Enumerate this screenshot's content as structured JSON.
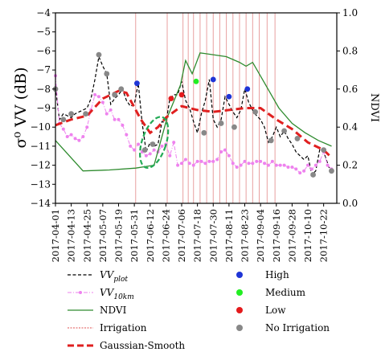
{
  "chart_data": {
    "type": "line",
    "title": "",
    "ylabel": "σ⁰ VV (dB)",
    "y2label": "NDVI",
    "ylim": [
      -14,
      -4
    ],
    "y2lim": [
      0.0,
      1.0
    ],
    "yticks": [
      -4,
      -5,
      -6,
      -7,
      -8,
      -9,
      -10,
      -11,
      -12,
      -13,
      -14
    ],
    "y2ticks": [
      "1.0",
      "0.8",
      "0.6",
      "0.4",
      "0.2",
      "0.0"
    ],
    "xlim": [
      "2017-04-01",
      "2017-11-01"
    ],
    "xticks": [
      "2017-04-01",
      "2017-04-13",
      "2017-04-25",
      "2017-05-07",
      "2017-05-19",
      "2017-05-31",
      "2017-06-12",
      "2017-06-24",
      "2017-07-06",
      "2017-07-18",
      "2017-07-30",
      "2017-08-11",
      "2017-08-23",
      "2017-09-04",
      "2017-09-16",
      "2017-09-28",
      "2017-10-10",
      "2017-10-22"
    ],
    "irrigation_dates": [
      "2017-06-01",
      "2017-06-25",
      "2017-07-07",
      "2017-07-11",
      "2017-07-15",
      "2017-07-20",
      "2017-07-25",
      "2017-07-30",
      "2017-08-04",
      "2017-08-09",
      "2017-08-14",
      "2017-08-19",
      "2017-08-24",
      "2017-08-29",
      "2017-09-03",
      "2017-09-09",
      "2017-09-15"
    ],
    "series": [
      {
        "name": "VV_plot",
        "axis": "left",
        "style": "dashed",
        "color": "#000000",
        "points": [
          [
            "2017-04-01",
            -7.9
          ],
          [
            "2017-04-04",
            -9.6
          ],
          [
            "2017-04-07",
            -9.3
          ],
          [
            "2017-04-10",
            -9.4
          ],
          [
            "2017-04-13",
            -9.5
          ],
          [
            "2017-04-16",
            -9.3
          ],
          [
            "2017-04-19",
            -9.2
          ],
          [
            "2017-04-22",
            -9.1
          ],
          [
            "2017-04-25",
            -9.0
          ],
          [
            "2017-04-28",
            -8.5
          ],
          [
            "2017-05-01",
            -7.5
          ],
          [
            "2017-05-04",
            -6.3
          ],
          [
            "2017-05-07",
            -6.8
          ],
          [
            "2017-05-10",
            -7.2
          ],
          [
            "2017-05-13",
            -8.8
          ],
          [
            "2017-05-16",
            -8.5
          ],
          [
            "2017-05-19",
            -8.3
          ],
          [
            "2017-05-22",
            -8.0
          ],
          [
            "2017-05-25",
            -8.6
          ],
          [
            "2017-05-28",
            -8.9
          ],
          [
            "2017-05-31",
            -8.8
          ],
          [
            "2017-06-03",
            -7.7
          ],
          [
            "2017-06-06",
            -9.8
          ],
          [
            "2017-06-09",
            -11.3
          ],
          [
            "2017-06-12",
            -10.8
          ],
          [
            "2017-06-15",
            -11.0
          ],
          [
            "2017-06-18",
            -10.9
          ],
          [
            "2017-06-21",
            -9.7
          ],
          [
            "2017-06-24",
            -9.8
          ],
          [
            "2017-06-27",
            -8.5
          ],
          [
            "2017-06-30",
            -8.3
          ],
          [
            "2017-07-03",
            -8.3
          ],
          [
            "2017-07-06",
            -7.6
          ],
          [
            "2017-07-09",
            -8.6
          ],
          [
            "2017-07-12",
            -9.0
          ],
          [
            "2017-07-15",
            -9.7
          ],
          [
            "2017-07-18",
            -10.3
          ],
          [
            "2017-07-21",
            -9.3
          ],
          [
            "2017-07-24",
            -8.6
          ],
          [
            "2017-07-27",
            -7.5
          ],
          [
            "2017-07-30",
            -9.6
          ],
          [
            "2017-08-02",
            -10.0
          ],
          [
            "2017-08-05",
            -9.6
          ],
          [
            "2017-08-08",
            -8.4
          ],
          [
            "2017-08-11",
            -8.8
          ],
          [
            "2017-08-14",
            -9.2
          ],
          [
            "2017-08-17",
            -9.5
          ],
          [
            "2017-08-20",
            -9.1
          ],
          [
            "2017-08-23",
            -8.0
          ],
          [
            "2017-08-26",
            -8.7
          ],
          [
            "2017-08-29",
            -9.1
          ],
          [
            "2017-09-01",
            -9.4
          ],
          [
            "2017-09-04",
            -9.6
          ],
          [
            "2017-09-07",
            -10.0
          ],
          [
            "2017-09-10",
            -10.8
          ],
          [
            "2017-09-13",
            -10.5
          ],
          [
            "2017-09-16",
            -10.0
          ],
          [
            "2017-09-19",
            -10.5
          ],
          [
            "2017-09-22",
            -10.2
          ],
          [
            "2017-09-25",
            -10.6
          ],
          [
            "2017-09-28",
            -10.9
          ],
          [
            "2017-10-01",
            -11.3
          ],
          [
            "2017-10-04",
            -11.5
          ],
          [
            "2017-10-07",
            -11.7
          ],
          [
            "2017-10-10",
            -11.5
          ],
          [
            "2017-10-13",
            -12.5
          ],
          [
            "2017-10-16",
            -12.3
          ],
          [
            "2017-10-19",
            -11.2
          ],
          [
            "2017-10-22",
            -11.3
          ],
          [
            "2017-10-25",
            -11.9
          ],
          [
            "2017-10-28",
            -12.5
          ]
        ]
      },
      {
        "name": "VV_10km",
        "axis": "left",
        "style": "dash-dot-markers",
        "color": "#ee82ee",
        "points": [
          [
            "2017-04-01",
            -7.3
          ],
          [
            "2017-04-04",
            -9.8
          ],
          [
            "2017-04-07",
            -10.1
          ],
          [
            "2017-04-10",
            -10.5
          ],
          [
            "2017-04-13",
            -10.4
          ],
          [
            "2017-04-16",
            -10.6
          ],
          [
            "2017-04-19",
            -10.7
          ],
          [
            "2017-04-22",
            -10.5
          ],
          [
            "2017-04-25",
            -10.0
          ],
          [
            "2017-04-28",
            -9.1
          ],
          [
            "2017-05-01",
            -8.3
          ],
          [
            "2017-05-04",
            -8.4
          ],
          [
            "2017-05-07",
            -8.7
          ],
          [
            "2017-05-10",
            -9.3
          ],
          [
            "2017-05-13",
            -9.1
          ],
          [
            "2017-05-16",
            -9.6
          ],
          [
            "2017-05-19",
            -9.6
          ],
          [
            "2017-05-22",
            -9.9
          ],
          [
            "2017-05-25",
            -10.4
          ],
          [
            "2017-05-28",
            -11.0
          ],
          [
            "2017-05-31",
            -11.2
          ],
          [
            "2017-06-03",
            -10.9
          ],
          [
            "2017-06-06",
            -11.3
          ],
          [
            "2017-06-09",
            -11.5
          ],
          [
            "2017-06-12",
            -11.4
          ],
          [
            "2017-06-15",
            -11.2
          ],
          [
            "2017-06-18",
            -11.3
          ],
          [
            "2017-06-21",
            -11.0
          ],
          [
            "2017-06-24",
            -10.9
          ],
          [
            "2017-06-27",
            -11.5
          ],
          [
            "2017-06-30",
            -10.8
          ],
          [
            "2017-07-03",
            -12.0
          ],
          [
            "2017-07-06",
            -11.9
          ],
          [
            "2017-07-09",
            -11.7
          ],
          [
            "2017-07-12",
            -11.9
          ],
          [
            "2017-07-15",
            -12.0
          ],
          [
            "2017-07-18",
            -11.8
          ],
          [
            "2017-07-21",
            -11.8
          ],
          [
            "2017-07-24",
            -11.9
          ],
          [
            "2017-07-27",
            -11.8
          ],
          [
            "2017-07-30",
            -11.8
          ],
          [
            "2017-08-02",
            -11.7
          ],
          [
            "2017-08-05",
            -11.3
          ],
          [
            "2017-08-08",
            -11.2
          ],
          [
            "2017-08-11",
            -11.5
          ],
          [
            "2017-08-14",
            -11.9
          ],
          [
            "2017-08-17",
            -12.1
          ],
          [
            "2017-08-20",
            -12.0
          ],
          [
            "2017-08-23",
            -11.8
          ],
          [
            "2017-08-26",
            -11.9
          ],
          [
            "2017-08-29",
            -11.9
          ],
          [
            "2017-09-01",
            -11.8
          ],
          [
            "2017-09-04",
            -11.8
          ],
          [
            "2017-09-07",
            -11.9
          ],
          [
            "2017-09-10",
            -12.0
          ],
          [
            "2017-09-13",
            -11.8
          ],
          [
            "2017-09-16",
            -12.0
          ],
          [
            "2017-09-19",
            -12.0
          ],
          [
            "2017-09-22",
            -12.0
          ],
          [
            "2017-09-25",
            -12.1
          ],
          [
            "2017-09-28",
            -12.1
          ],
          [
            "2017-10-01",
            -12.2
          ],
          [
            "2017-10-04",
            -12.4
          ],
          [
            "2017-10-07",
            -12.3
          ],
          [
            "2017-10-10",
            -12.0
          ],
          [
            "2017-10-13",
            -12.2
          ],
          [
            "2017-10-16",
            -12.0
          ],
          [
            "2017-10-19",
            -11.8
          ],
          [
            "2017-10-22",
            -11.3
          ],
          [
            "2017-10-25",
            -12.0
          ],
          [
            "2017-10-28",
            -12.2
          ]
        ]
      },
      {
        "name": "NDVI",
        "axis": "right",
        "style": "solid",
        "color": "#2e8b2e",
        "points": [
          [
            "2017-04-01",
            0.33
          ],
          [
            "2017-04-22",
            0.17
          ],
          [
            "2017-05-12",
            0.175
          ],
          [
            "2017-06-01",
            0.185
          ],
          [
            "2017-06-15",
            0.2
          ],
          [
            "2017-06-25",
            0.45
          ],
          [
            "2017-07-05",
            0.62
          ],
          [
            "2017-07-09",
            0.75
          ],
          [
            "2017-07-14",
            0.68
          ],
          [
            "2017-07-20",
            0.79
          ],
          [
            "2017-07-30",
            0.78
          ],
          [
            "2017-08-09",
            0.77
          ],
          [
            "2017-08-19",
            0.74
          ],
          [
            "2017-08-24",
            0.72
          ],
          [
            "2017-08-29",
            0.74
          ],
          [
            "2017-09-08",
            0.62
          ],
          [
            "2017-09-18",
            0.5
          ],
          [
            "2017-09-28",
            0.42
          ],
          [
            "2017-10-08",
            0.37
          ],
          [
            "2017-10-18",
            0.33
          ],
          [
            "2017-10-28",
            0.3
          ]
        ]
      },
      {
        "name": "Gaussian-Smooth",
        "axis": "left",
        "style": "dashed-thick",
        "color": "#e02020",
        "points": [
          [
            "2017-04-01",
            -9.9
          ],
          [
            "2017-04-13",
            -9.6
          ],
          [
            "2017-04-25",
            -9.4
          ],
          [
            "2017-05-07",
            -8.5
          ],
          [
            "2017-05-19",
            -8.1
          ],
          [
            "2017-05-25",
            -8.2
          ],
          [
            "2017-06-05",
            -9.6
          ],
          [
            "2017-06-12",
            -10.3
          ],
          [
            "2017-06-18",
            -10.0
          ],
          [
            "2017-06-24",
            -9.5
          ],
          [
            "2017-07-06",
            -8.9
          ],
          [
            "2017-07-18",
            -9.1
          ],
          [
            "2017-07-30",
            -9.2
          ],
          [
            "2017-08-11",
            -9.1
          ],
          [
            "2017-08-23",
            -9.0
          ],
          [
            "2017-09-04",
            -9.0
          ],
          [
            "2017-09-16",
            -9.6
          ],
          [
            "2017-09-28",
            -10.1
          ],
          [
            "2017-10-10",
            -10.8
          ],
          [
            "2017-10-22",
            -11.2
          ],
          [
            "2017-10-28",
            -11.6
          ]
        ]
      }
    ],
    "markers": [
      {
        "category": "High",
        "color": "#1f35d6",
        "points": [
          [
            "2017-06-02",
            -7.7
          ],
          [
            "2017-07-30",
            -7.5
          ],
          [
            "2017-08-11",
            -8.4
          ],
          [
            "2017-08-25",
            -8.0
          ]
        ]
      },
      {
        "category": "Medium",
        "color": "#22ee22",
        "points": [
          [
            "2017-07-17",
            -7.6
          ]
        ]
      },
      {
        "category": "Low",
        "color": "#e41a1c",
        "points": [
          [
            "2017-06-28",
            -8.5
          ],
          [
            "2017-07-06",
            -8.3
          ]
        ]
      },
      {
        "category": "No Irrigation",
        "color": "#888888",
        "points": [
          [
            "2017-04-01",
            -8.0
          ],
          [
            "2017-04-07",
            -9.6
          ],
          [
            "2017-04-13",
            -9.3
          ],
          [
            "2017-04-24",
            -9.3
          ],
          [
            "2017-05-04",
            -6.2
          ],
          [
            "2017-05-10",
            -7.2
          ],
          [
            "2017-05-16",
            -8.3
          ],
          [
            "2017-05-21",
            -8.0
          ],
          [
            "2017-06-08",
            -11.2
          ],
          [
            "2017-06-14",
            -10.9
          ],
          [
            "2017-07-23",
            -10.3
          ],
          [
            "2017-08-05",
            -9.8
          ],
          [
            "2017-08-15",
            -10.0
          ],
          [
            "2017-08-31",
            -9.2
          ],
          [
            "2017-09-12",
            -10.7
          ],
          [
            "2017-09-22",
            -10.2
          ],
          [
            "2017-10-02",
            -10.6
          ],
          [
            "2017-10-14",
            -12.5
          ],
          [
            "2017-10-22",
            -11.2
          ],
          [
            "2017-10-28",
            -12.3
          ]
        ]
      }
    ],
    "annotation": {
      "type": "dashed-ellipse",
      "color": "#22aa55",
      "center": [
        "2017-06-15",
        -10.8
      ]
    },
    "legend": {
      "placement": "bottom",
      "left": [
        {
          "label": "VV",
          "sub": "plot",
          "style": "dashed-black"
        },
        {
          "label": "VV",
          "sub": "10km",
          "style": "pink-markers"
        },
        {
          "label": "NDVI",
          "style": "green-solid"
        },
        {
          "label": "Irrigation",
          "style": "red-dotted"
        },
        {
          "label": "Gaussian-Smooth",
          "style": "red-thick-dashed"
        }
      ],
      "right": [
        {
          "label": "High",
          "color": "#1f35d6"
        },
        {
          "label": "Medium",
          "color": "#22ee22"
        },
        {
          "label": "Low",
          "color": "#e41a1c"
        },
        {
          "label": "No Irrigation",
          "color": "#888888"
        }
      ]
    }
  }
}
